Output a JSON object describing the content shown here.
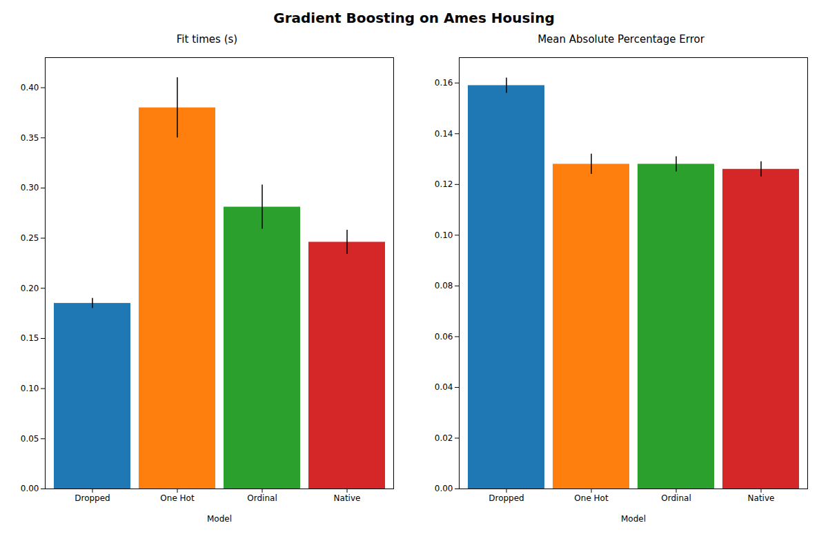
{
  "title": "Gradient Boosting on Ames Housing",
  "chart_data": [
    {
      "type": "bar",
      "title": "Fit times (s)",
      "xlabel": "Model",
      "categories": [
        "Dropped",
        "One Hot",
        "Ordinal",
        "Native"
      ],
      "colors": [
        "#1f77b4",
        "#ff7f0e",
        "#2ca02c",
        "#d62728"
      ],
      "values": [
        0.185,
        0.38,
        0.281,
        0.246
      ],
      "errors": [
        0.005,
        0.03,
        0.022,
        0.012
      ],
      "ylim": [
        0.0,
        0.43
      ],
      "yticks": [
        {
          "value": 0.0,
          "label": "0.00"
        },
        0.05,
        {
          "value": 0.1,
          "label": "0.10"
        },
        0.15,
        {
          "value": 0.2,
          "label": "0.20"
        },
        0.25,
        {
          "value": 0.3,
          "label": "0.30"
        },
        0.35,
        {
          "value": 0.4,
          "label": "0.40"
        }
      ]
    },
    {
      "type": "bar",
      "title": "Mean Absolute Percentage Error",
      "xlabel": "Model",
      "categories": [
        "Dropped",
        "One Hot",
        "Ordinal",
        "Native"
      ],
      "colors": [
        "#1f77b4",
        "#ff7f0e",
        "#2ca02c",
        "#d62728"
      ],
      "values": [
        0.159,
        0.128,
        0.128,
        0.126
      ],
      "errors": [
        0.003,
        0.004,
        0.003,
        0.003
      ],
      "ylim": [
        0.0,
        0.17
      ],
      "yticks": [
        {
          "value": 0.0,
          "label": "0.00"
        },
        0.02,
        0.04,
        0.06,
        0.08,
        {
          "value": 0.1,
          "label": "0.10"
        },
        0.12,
        0.14,
        0.16
      ]
    }
  ]
}
